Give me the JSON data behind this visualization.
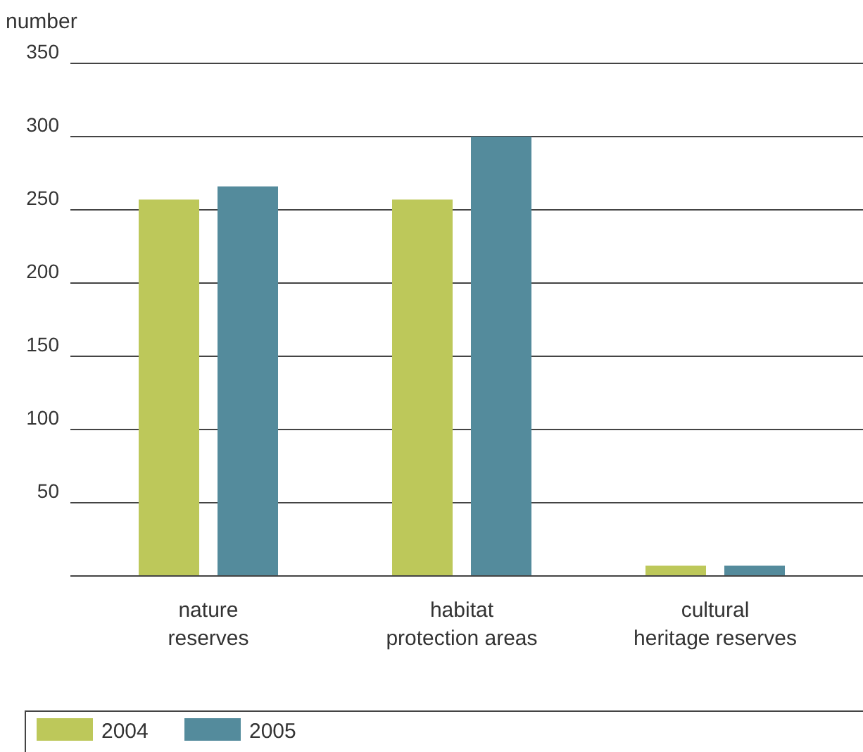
{
  "chart_data": {
    "type": "bar",
    "ylabel": "number",
    "categories": [
      "nature reserves",
      "habitat protection areas",
      "cultural heritage reserves"
    ],
    "series": [
      {
        "name": "2004",
        "color": "#bdc85a",
        "values": [
          257,
          257,
          7
        ]
      },
      {
        "name": "2005",
        "color": "#548b9c",
        "values": [
          266,
          300,
          7
        ]
      }
    ],
    "ylim": [
      0,
      350
    ],
    "yticks": [
      50,
      100,
      150,
      200,
      250,
      300,
      350
    ],
    "grid": "y",
    "legend": "bottom"
  }
}
